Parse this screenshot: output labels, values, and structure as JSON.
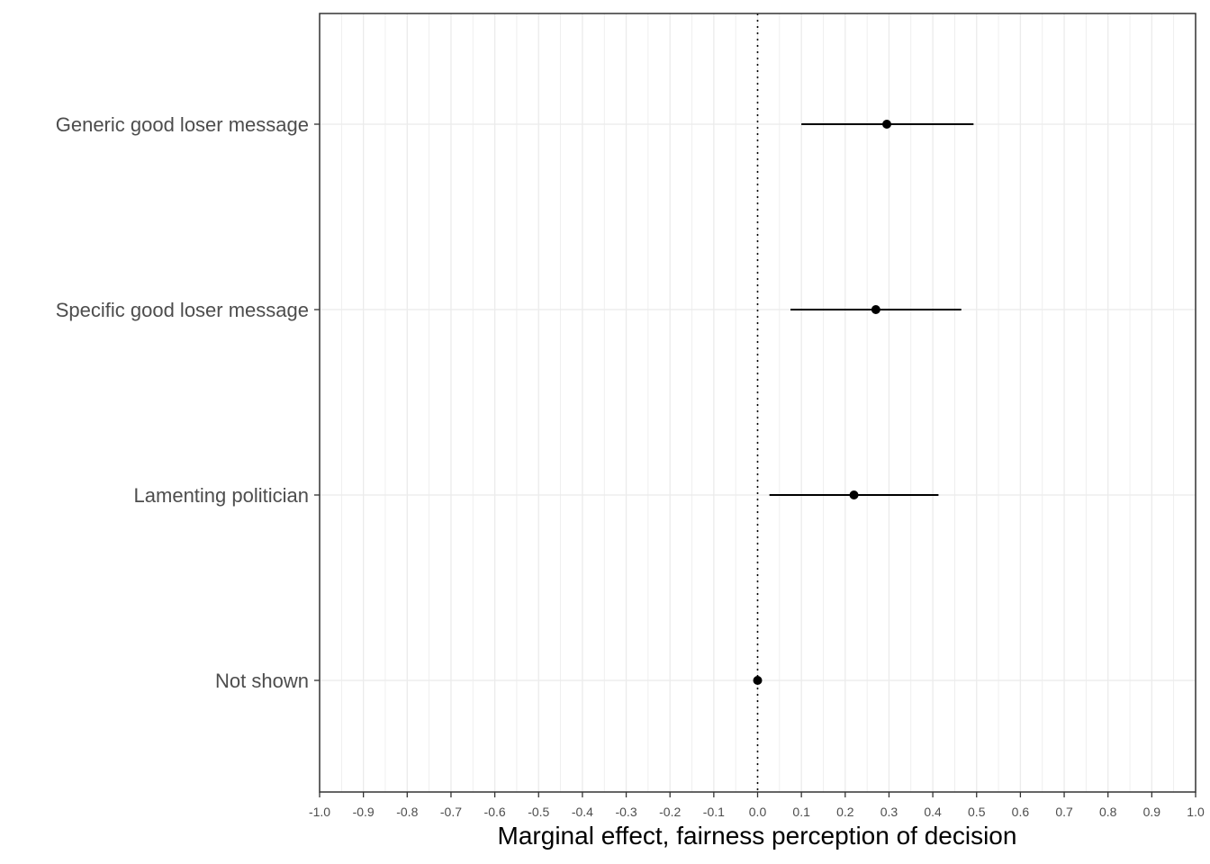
{
  "chart_data": {
    "type": "dot-and-whisker",
    "xlabel": "Marginal effect, fairness perception of decision",
    "ylabel": "",
    "xlim": [
      -1.0,
      1.0
    ],
    "x_ticks": [
      -1.0,
      -0.9,
      -0.8,
      -0.7,
      -0.6,
      -0.5,
      -0.4,
      -0.3,
      -0.2,
      -0.1,
      0.0,
      0.1,
      0.2,
      0.3,
      0.4,
      0.5,
      0.6,
      0.7,
      0.8,
      0.9,
      1.0
    ],
    "x_tick_labels": [
      "-1.0",
      "-0.9",
      "-0.8",
      "-0.7",
      "-0.6",
      "-0.5",
      "-0.4",
      "-0.3",
      "-0.2",
      "-0.1",
      "0.0",
      "0.1",
      "0.2",
      "0.3",
      "0.4",
      "0.5",
      "0.6",
      "0.7",
      "0.8",
      "0.9",
      "1.0"
    ],
    "reference_line": {
      "x": 0.0,
      "style": "dotted"
    },
    "grid": true,
    "categories": [
      "Generic good loser message",
      "Specific good loser message",
      "Lamenting politician",
      "Not shown"
    ],
    "estimates": [
      {
        "category": "Generic good loser message",
        "estimate": 0.295,
        "ci_low": 0.1,
        "ci_high": 0.493
      },
      {
        "category": "Specific good loser message",
        "estimate": 0.27,
        "ci_low": 0.075,
        "ci_high": 0.465
      },
      {
        "category": "Lamenting politician",
        "estimate": 0.22,
        "ci_low": 0.027,
        "ci_high": 0.413
      },
      {
        "category": "Not shown",
        "estimate": 0.0,
        "ci_low": 0.0,
        "ci_high": 0.0
      }
    ],
    "colors": {
      "point": "#000000",
      "grid": "#ebebeb",
      "panel_border": "#333333",
      "label_text": "#4d4d4d"
    }
  }
}
